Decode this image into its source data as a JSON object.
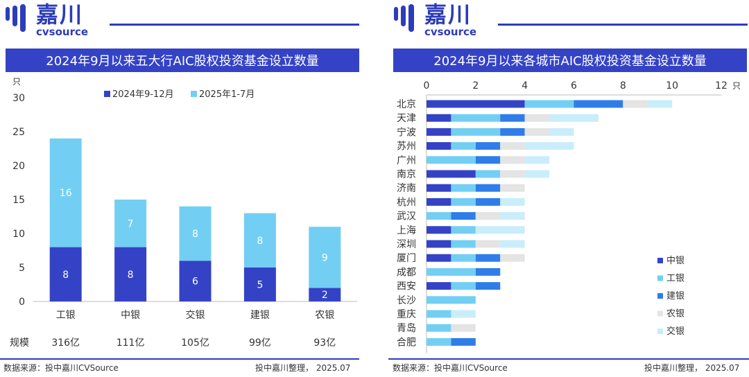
{
  "logo": {
    "cn": "嘉川",
    "en": "cvsource"
  },
  "left": {
    "title": "2024年9月以来五大行AIC股权投资基金设立数量",
    "footer_source": "数据来源：投中嘉川CVSource",
    "footer_right": "投中嘉川整理，  2025.07"
  },
  "right": {
    "title": "2024年9月以来各城市AIC股权投资基金设立数量",
    "footer_source": "数据来源：投中嘉川CVSource",
    "footer_right": "投中嘉川整理，  2025.07"
  },
  "chart_data": [
    {
      "type": "bar",
      "stacked": true,
      "orientation": "vertical",
      "title": "2024年9月以来五大行AIC股权投资基金设立数量",
      "ylabel": "只",
      "ylim": [
        0,
        30
      ],
      "yticks": [
        0,
        5,
        10,
        15,
        20,
        25,
        30
      ],
      "grid": false,
      "legend_position": "top",
      "categories": [
        "工银",
        "中银",
        "交银",
        "建银",
        "农银"
      ],
      "series": [
        {
          "name": "2024年9-12月",
          "values": [
            8,
            8,
            6,
            5,
            2
          ],
          "color": "#3443c6"
        },
        {
          "name": "2025年1-7月",
          "values": [
            16,
            7,
            8,
            8,
            9
          ],
          "color": "#72cff3"
        }
      ],
      "extra_row": {
        "label": "规模",
        "values": [
          "316亿",
          "111亿",
          "105亿",
          "99亿",
          "93亿"
        ]
      }
    },
    {
      "type": "bar",
      "stacked": true,
      "orientation": "horizontal",
      "title": "2024年9月以来各城市AIC股权投资基金设立数量",
      "xlabel": "只",
      "xlim": [
        0,
        12
      ],
      "xticks": [
        0,
        2,
        4,
        6,
        8,
        10,
        12
      ],
      "grid": false,
      "legend_position": "bottom-right",
      "categories": [
        "北京",
        "天津",
        "宁波",
        "苏州",
        "广州",
        "南京",
        "济南",
        "杭州",
        "武汉",
        "上海",
        "深圳",
        "厦门",
        "成都",
        "西安",
        "长沙",
        "重庆",
        "青岛",
        "合肥"
      ],
      "series": [
        {
          "name": "中银",
          "values": [
            4,
            1,
            1,
            1,
            0,
            2,
            1,
            1,
            0,
            1,
            1,
            1,
            0,
            1,
            0,
            0,
            0,
            0
          ],
          "color": "#3443c6"
        },
        {
          "name": "工银",
          "values": [
            2,
            2,
            2,
            1,
            2,
            1,
            1,
            1,
            1,
            1,
            1,
            1,
            2,
            1,
            2,
            1,
            1,
            1
          ],
          "color": "#72cff3"
        },
        {
          "name": "建银",
          "values": [
            2,
            1,
            1,
            1,
            1,
            0,
            1,
            1,
            1,
            0,
            0,
            1,
            1,
            1,
            0,
            0,
            0,
            1
          ],
          "color": "#2f7de8"
        },
        {
          "name": "农银",
          "values": [
            1,
            1,
            1,
            1,
            1,
            1,
            1,
            0,
            1,
            0,
            1,
            1,
            0,
            0,
            0,
            0,
            1,
            0
          ],
          "color": "#e4e4e4"
        },
        {
          "name": "交银",
          "values": [
            1,
            2,
            1,
            2,
            1,
            1,
            0,
            1,
            1,
            2,
            1,
            0,
            0,
            0,
            0,
            1,
            0,
            0
          ],
          "color": "#c9edfb"
        }
      ]
    }
  ]
}
